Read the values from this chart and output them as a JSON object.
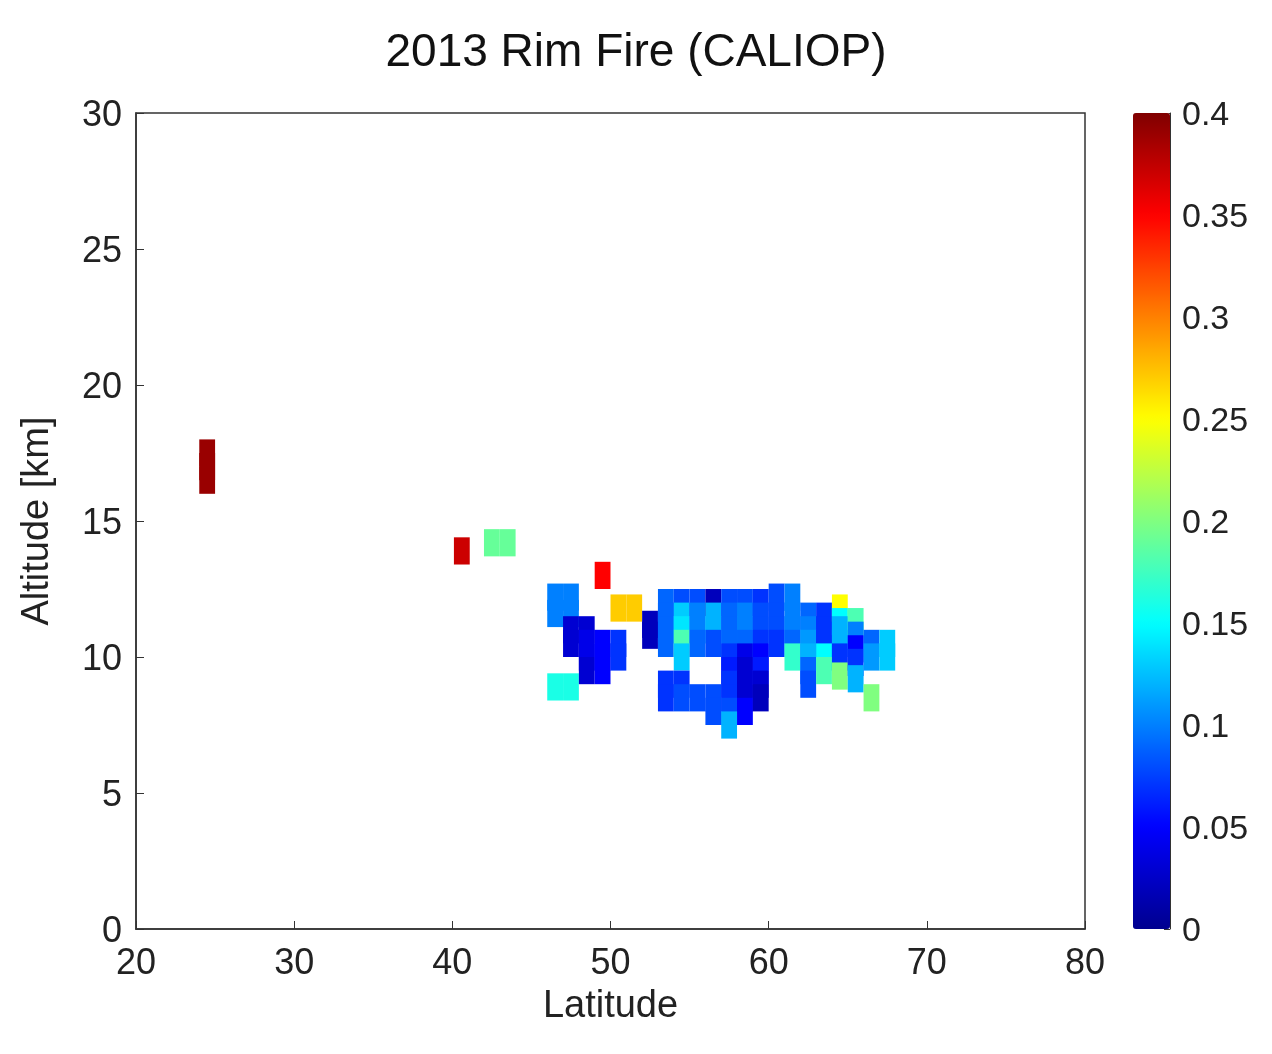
{
  "chart_data": {
    "type": "scatter",
    "title": "2013 Rim Fire (CALIOP)",
    "xlabel": "Latitude",
    "ylabel": "Altitude [km]",
    "marker": "square",
    "grid": false,
    "xlim": [
      20,
      80
    ],
    "xticks": [
      20,
      30,
      40,
      50,
      60,
      70,
      80
    ],
    "ylim": [
      0,
      30
    ],
    "yticks": [
      0,
      5,
      10,
      15,
      20,
      25,
      30
    ],
    "clim": [
      0,
      0.4
    ],
    "cticks": [
      0,
      0.05,
      0.1,
      0.15,
      0.2,
      0.25,
      0.3,
      0.35,
      0.4
    ],
    "x": [
      24.5,
      24.5,
      24.5,
      40.6,
      42.5,
      43.5,
      49.5,
      50.5,
      51.5,
      46.5,
      47.5,
      46.5,
      47.5,
      46.5,
      47.5,
      47.5,
      47.5,
      48.5,
      48.5,
      48.5,
      48.5,
      49.5,
      49.5,
      49.5,
      50.5,
      50.5,
      52.5,
      52.5,
      53.5,
      53.5,
      53.5,
      53.5,
      53.5,
      53.5,
      54.5,
      54.5,
      54.5,
      54.5,
      54.5,
      54.5,
      54.5,
      55.5,
      55.5,
      55.5,
      55.5,
      55.5,
      56.5,
      56.5,
      56.5,
      56.5,
      56.5,
      56.5,
      57.5,
      57.5,
      57.5,
      57.5,
      57.5,
      57.5,
      57.5,
      57.5,
      57.5,
      57.5,
      58.5,
      58.5,
      58.5,
      58.5,
      58.5,
      58.5,
      58.5,
      58.5,
      58.5,
      59.5,
      59.5,
      59.5,
      59.5,
      59.5,
      59.5,
      59.5,
      59.5,
      60.5,
      60.5,
      60.5,
      60.5,
      61.5,
      61.5,
      61.5,
      61.5,
      61.5,
      62.5,
      62.5,
      62.5,
      62.5,
      62.5,
      62.5,
      63.5,
      63.5,
      63.5,
      63.5,
      63.5,
      64.5,
      64.5,
      64.5,
      64.5,
      64.5,
      64.5,
      65.5,
      65.5,
      65.5,
      65.5,
      65.5,
      66.5,
      66.5,
      66.5,
      67.5,
      67.5
    ],
    "values": [
      16.5,
      17.0,
      17.5,
      13.9,
      14.2,
      14.2,
      13.0,
      11.8,
      11.8,
      12.2,
      12.2,
      11.6,
      11.6,
      8.9,
      8.9,
      11.0,
      10.5,
      11.0,
      10.5,
      10.0,
      9.5,
      10.5,
      10.0,
      9.5,
      10.5,
      10.0,
      11.2,
      10.8,
      12.0,
      11.5,
      11.0,
      10.5,
      9.0,
      8.5,
      12.0,
      11.5,
      11.0,
      10.5,
      10.0,
      9.0,
      8.5,
      12.0,
      11.5,
      11.0,
      10.5,
      8.5,
      12.0,
      11.5,
      11.0,
      10.5,
      8.5,
      8.0,
      12.0,
      11.5,
      11.0,
      10.5,
      10.0,
      9.5,
      9.0,
      8.5,
      8.0,
      7.5,
      12.0,
      11.5,
      11.0,
      10.5,
      10.0,
      9.5,
      9.0,
      8.5,
      8.0,
      12.0,
      11.5,
      11.0,
      10.5,
      10.0,
      9.5,
      9.0,
      8.5,
      12.2,
      11.5,
      11.0,
      10.5,
      12.2,
      11.5,
      11.0,
      10.5,
      10.0,
      11.5,
      11.0,
      10.5,
      10.0,
      9.5,
      9.0,
      11.5,
      11.0,
      10.5,
      10.0,
      9.5,
      11.8,
      11.3,
      11.0,
      10.5,
      10.0,
      9.3,
      11.3,
      10.8,
      10.3,
      9.8,
      9.2,
      10.5,
      10.0,
      8.5,
      10.5,
      10.0
    ],
    "cvalues": [
      0.39,
      0.39,
      0.39,
      0.37,
      0.19,
      0.19,
      0.35,
      0.27,
      0.27,
      0.1,
      0.1,
      0.1,
      0.1,
      0.16,
      0.16,
      0.03,
      0.03,
      0.03,
      0.04,
      0.04,
      0.03,
      0.05,
      0.05,
      0.05,
      0.07,
      0.07,
      0.02,
      0.02,
      0.09,
      0.09,
      0.09,
      0.09,
      0.07,
      0.07,
      0.08,
      0.13,
      0.14,
      0.18,
      0.13,
      0.07,
      0.08,
      0.08,
      0.1,
      0.1,
      0.09,
      0.08,
      0.02,
      0.12,
      0.12,
      0.08,
      0.08,
      0.08,
      0.08,
      0.09,
      0.09,
      0.09,
      0.07,
      0.06,
      0.07,
      0.07,
      0.08,
      0.12,
      0.08,
      0.1,
      0.1,
      0.09,
      0.04,
      0.03,
      0.03,
      0.03,
      0.05,
      0.07,
      0.08,
      0.08,
      0.07,
      0.05,
      0.06,
      0.03,
      0.02,
      0.08,
      0.08,
      0.08,
      0.07,
      0.1,
      0.1,
      0.1,
      0.09,
      0.17,
      0.09,
      0.1,
      0.11,
      0.12,
      0.09,
      0.08,
      0.07,
      0.07,
      0.07,
      0.15,
      0.18,
      0.25,
      0.15,
      0.12,
      0.12,
      0.07,
      0.2,
      0.18,
      0.1,
      0.05,
      0.07,
      0.12,
      0.09,
      0.11,
      0.2,
      0.13,
      0.13
    ]
  }
}
